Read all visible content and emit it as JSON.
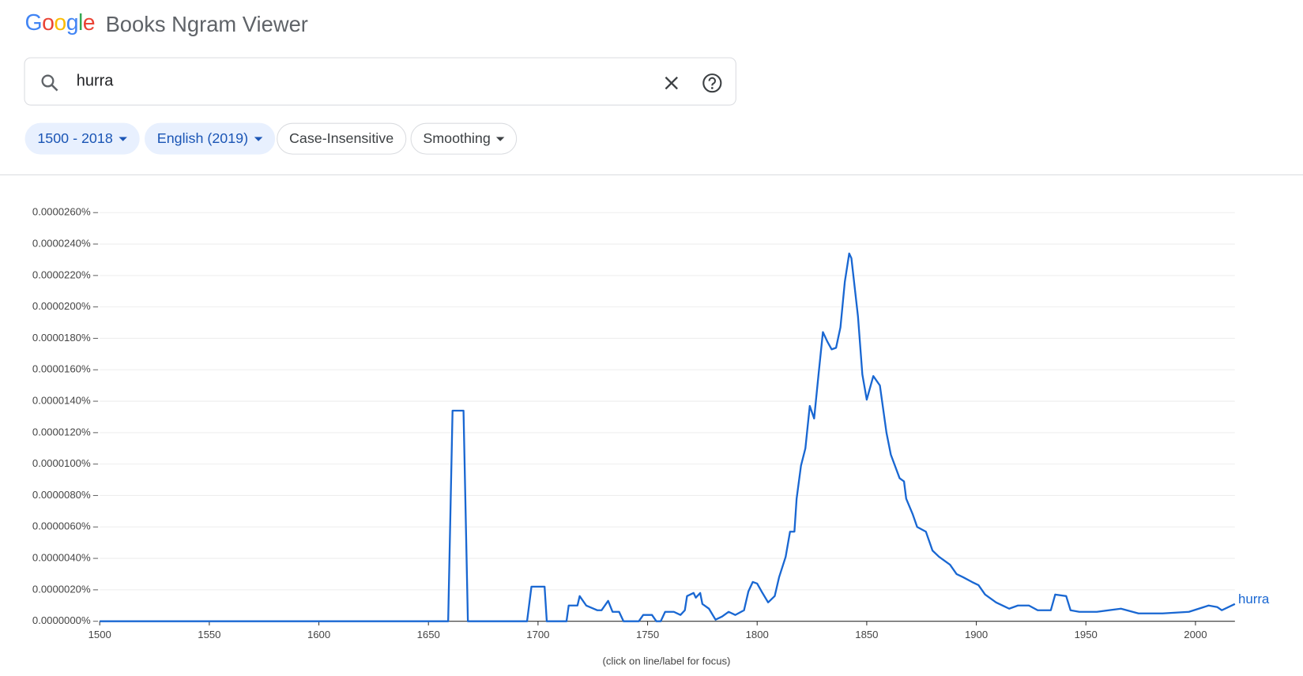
{
  "ui": {
    "logo": "Google",
    "product": "Books Ngram Viewer",
    "query": "hurra",
    "chips": [
      "1500 - 2018",
      "English (2019)",
      "Case-Insensitive",
      "Smoothing"
    ],
    "footnote": "(click on line/label for focus)"
  },
  "chart_data": {
    "type": "line",
    "grid": true,
    "xlim": [
      1500,
      2018
    ],
    "ylim": [
      0,
      2.6e-05
    ],
    "xticks": [
      1500,
      1550,
      1600,
      1650,
      1700,
      1750,
      1800,
      1850,
      1900,
      1950,
      2000
    ],
    "yticks": [
      {
        "value": 0,
        "label": "0.0000000%"
      },
      {
        "value": 2e-06,
        "label": "0.0000020%"
      },
      {
        "value": 4e-06,
        "label": "0.0000040%"
      },
      {
        "value": 6e-06,
        "label": "0.0000060%"
      },
      {
        "value": 8e-06,
        "label": "0.0000080%"
      },
      {
        "value": 1e-05,
        "label": "0.0000100%"
      },
      {
        "value": 1.2e-05,
        "label": "0.0000120%"
      },
      {
        "value": 1.4e-05,
        "label": "0.0000140%"
      },
      {
        "value": 1.6e-05,
        "label": "0.0000160%"
      },
      {
        "value": 1.8e-05,
        "label": "0.0000180%"
      },
      {
        "value": 2e-05,
        "label": "0.0000200%"
      },
      {
        "value": 2.2e-05,
        "label": "0.0000220%"
      },
      {
        "value": 2.4e-05,
        "label": "0.0000240%"
      },
      {
        "value": 2.6e-05,
        "label": "0.0000260%"
      }
    ],
    "x": [
      1500,
      1659,
      1661,
      1666,
      1668,
      1695,
      1697,
      1703,
      1704,
      1713,
      1714,
      1718,
      1719,
      1722,
      1727,
      1729,
      1732,
      1734,
      1737,
      1739,
      1746,
      1748,
      1752,
      1754,
      1756,
      1758,
      1762,
      1765,
      1767,
      1768,
      1771,
      1772,
      1774,
      1775,
      1778,
      1781,
      1784,
      1787,
      1790,
      1794,
      1796,
      1798,
      1800,
      1802,
      1805,
      1808,
      1810,
      1813,
      1815,
      1817,
      1818,
      1820,
      1822,
      1824,
      1826,
      1828,
      1830,
      1832,
      1834,
      1836,
      1838,
      1840,
      1842,
      1843,
      1846,
      1848,
      1850,
      1853,
      1856,
      1859,
      1861,
      1865,
      1867,
      1868,
      1871,
      1873,
      1877,
      1880,
      1883,
      1888,
      1891,
      1894,
      1898,
      1901,
      1904,
      1909,
      1915,
      1919,
      1924,
      1928,
      1934,
      1936,
      1941,
      1943,
      1947,
      1955,
      1966,
      1974,
      1985,
      1997,
      2006,
      2010,
      2012,
      2018
    ],
    "series": [
      {
        "name": "hurra",
        "color": "#1967d2",
        "values": [
          0,
          0,
          1.34e-05,
          1.34e-05,
          0,
          0,
          2.2e-06,
          2.2e-06,
          0,
          0,
          1e-06,
          1e-06,
          1.6e-06,
          1e-06,
          7e-07,
          7e-07,
          1.3e-06,
          6e-07,
          6e-07,
          0,
          0,
          4e-07,
          4e-07,
          0,
          0,
          6e-07,
          6e-07,
          4e-07,
          7e-07,
          1.6e-06,
          1.8e-06,
          1.5e-06,
          1.8e-06,
          1.1e-06,
          8e-07,
          1e-07,
          3e-07,
          6e-07,
          4e-07,
          7e-07,
          1.9e-06,
          2.5e-06,
          2.4e-06,
          1.9e-06,
          1.2e-06,
          1.6e-06,
          2.8e-06,
          4.1e-06,
          5.7e-06,
          5.7e-06,
          7.8e-06,
          9.9e-06,
          1.1e-05,
          1.37e-05,
          1.29e-05,
          1.57e-05,
          1.84e-05,
          1.78e-05,
          1.73e-05,
          1.74e-05,
          1.87e-05,
          2.16e-05,
          2.34e-05,
          2.31e-05,
          1.94e-05,
          1.57e-05,
          1.41e-05,
          1.56e-05,
          1.5e-05,
          1.2e-05,
          1.06e-05,
          9.1e-06,
          8.9e-06,
          7.8e-06,
          6.8e-06,
          6e-06,
          5.7e-06,
          4.5e-06,
          4.1e-06,
          3.6e-06,
          3e-06,
          2.8e-06,
          2.5e-06,
          2.3e-06,
          1.7e-06,
          1.2e-06,
          8e-07,
          1e-06,
          1e-06,
          7e-07,
          7e-07,
          1.7e-06,
          1.6e-06,
          7e-07,
          6e-07,
          6e-07,
          8e-07,
          5e-07,
          5e-07,
          6e-07,
          1e-06,
          9e-07,
          7e-07,
          1.1e-06
        ]
      }
    ]
  }
}
